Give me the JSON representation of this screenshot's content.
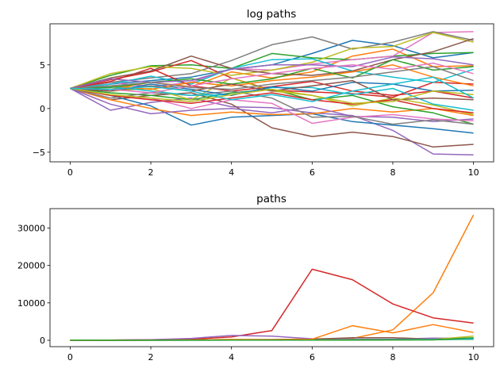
{
  "chart_data": [
    {
      "type": "line",
      "title": "log paths",
      "xlabel": "",
      "ylabel": "",
      "xlim": [
        -0.5,
        10.5
      ],
      "ylim": [
        -6.1,
        9.7
      ],
      "grid": false,
      "x": [
        0,
        1,
        2,
        3,
        4,
        5,
        6,
        7,
        8,
        9,
        10
      ],
      "xticks": [
        0,
        2,
        4,
        6,
        8,
        10
      ],
      "xtick_labels": [
        "0",
        "2",
        "4",
        "6",
        "8",
        "10"
      ],
      "yticks": [
        -5,
        0,
        5
      ],
      "ytick_labels": [
        "−5",
        "0",
        "5"
      ],
      "series": [
        {
          "color": "#1f77b4",
          "values": [
            2.3,
            2.8,
            3.2,
            3.6,
            4.5,
            5.0,
            6.3,
            7.8,
            7.2,
            5.8,
            6.4
          ]
        },
        {
          "color": "#ff7f0e",
          "values": [
            2.3,
            2.2,
            3.0,
            2.5,
            4.2,
            3.5,
            4.2,
            6.0,
            6.8,
            4.8,
            4.9
          ]
        },
        {
          "color": "#2ca02c",
          "values": [
            2.3,
            3.8,
            4.9,
            5.0,
            4.6,
            6.3,
            5.8,
            5.6,
            6.0,
            6.3,
            6.4
          ]
        },
        {
          "color": "#d62728",
          "values": [
            2.3,
            3.3,
            4.2,
            5.5,
            3.5,
            2.1,
            1.9,
            1.7,
            1.3,
            3.0,
            2.8
          ]
        },
        {
          "color": "#9467bd",
          "values": [
            2.3,
            -0.2,
            0.7,
            1.2,
            0.2,
            0.1,
            -0.5,
            -0.8,
            -2.5,
            -5.2,
            -5.3
          ]
        },
        {
          "color": "#8c564b",
          "values": [
            2.3,
            1.0,
            1.5,
            1.8,
            0.5,
            -2.2,
            -3.2,
            -2.7,
            -3.2,
            -4.4,
            -4.1
          ]
        },
        {
          "color": "#e377c2",
          "values": [
            2.3,
            3.0,
            2.5,
            3.0,
            4.6,
            4.4,
            5.1,
            5.6,
            6.0,
            8.7,
            8.8
          ]
        },
        {
          "color": "#7f7f7f",
          "values": [
            2.3,
            3.0,
            3.5,
            4.0,
            5.5,
            7.3,
            8.2,
            6.8,
            7.6,
            8.8,
            7.8
          ]
        },
        {
          "color": "#bcbd22",
          "values": [
            2.3,
            4.0,
            4.8,
            4.6,
            3.8,
            4.4,
            5.3,
            6.9,
            7.1,
            8.7,
            7.6
          ]
        },
        {
          "color": "#17becf",
          "values": [
            2.3,
            2.8,
            3.7,
            2.8,
            4.6,
            5.6,
            5.7,
            4.3,
            3.6,
            3.0,
            4.5
          ]
        },
        {
          "color": "#1f77b4",
          "values": [
            2.3,
            1.5,
            0.3,
            -1.9,
            -1.0,
            -0.8,
            -0.6,
            -1.5,
            -1.9,
            -2.3,
            -2.8
          ]
        },
        {
          "color": "#ff7f0e",
          "values": [
            2.3,
            1.0,
            0.0,
            -0.8,
            -0.4,
            -0.7,
            -0.6,
            0.0,
            -0.4,
            0.0,
            -0.8
          ]
        },
        {
          "color": "#2ca02c",
          "values": [
            2.3,
            1.8,
            1.5,
            1.0,
            1.8,
            2.2,
            1.0,
            1.5,
            0.2,
            -0.5,
            -1.8
          ]
        },
        {
          "color": "#d62728",
          "values": [
            2.3,
            3.1,
            4.6,
            2.6,
            2.0,
            2.5,
            3.1,
            2.0,
            1.5,
            2.0,
            1.2
          ]
        },
        {
          "color": "#9467bd",
          "values": [
            2.3,
            0.5,
            -0.6,
            -0.2,
            0.0,
            -0.5,
            0.2,
            -0.9,
            -1.0,
            -1.5,
            -1.2
          ]
        },
        {
          "color": "#8c564b",
          "values": [
            2.3,
            3.5,
            4.3,
            6.0,
            4.6,
            4.0,
            3.8,
            4.3,
            5.6,
            6.5,
            8.0
          ]
        },
        {
          "color": "#e377c2",
          "values": [
            2.3,
            1.5,
            1.2,
            0.0,
            1.0,
            0.6,
            -1.7,
            -1.0,
            -0.7,
            -1.2,
            -1.4
          ]
        },
        {
          "color": "#7f7f7f",
          "values": [
            2.3,
            1.2,
            1.8,
            1.5,
            2.0,
            1.2,
            -1.0,
            -0.9,
            -1.8,
            -1.3,
            -1.8
          ]
        },
        {
          "color": "#bcbd22",
          "values": [
            2.3,
            2.0,
            2.3,
            1.0,
            3.5,
            2.0,
            1.5,
            0.3,
            1.2,
            0.4,
            -0.7
          ]
        },
        {
          "color": "#17becf",
          "values": [
            2.3,
            2.5,
            2.0,
            1.5,
            1.6,
            2.4,
            2.4,
            1.6,
            2.3,
            0.5,
            -0.2
          ]
        },
        {
          "color": "#1f77b4",
          "values": [
            2.3,
            2.0,
            2.8,
            2.2,
            1.5,
            2.5,
            2.0,
            3.0,
            2.8,
            2.0,
            2.1
          ]
        },
        {
          "color": "#ff7f0e",
          "values": [
            2.3,
            2.6,
            2.2,
            3.0,
            2.6,
            3.2,
            3.6,
            4.2,
            5.0,
            3.6,
            2.6
          ]
        },
        {
          "color": "#2ca02c",
          "values": [
            2.3,
            2.4,
            3.0,
            3.4,
            2.8,
            3.4,
            4.6,
            3.5,
            5.6,
            4.4,
            4.8
          ]
        },
        {
          "color": "#d62728",
          "values": [
            2.3,
            1.5,
            1.0,
            0.6,
            1.2,
            1.8,
            1.0,
            0.5,
            1.0,
            0.0,
            -0.5
          ]
        },
        {
          "color": "#9467bd",
          "values": [
            2.3,
            3.4,
            3.0,
            3.2,
            4.5,
            5.0,
            5.0,
            4.8,
            5.9,
            5.7,
            5.0
          ]
        },
        {
          "color": "#8c564b",
          "values": [
            2.3,
            2.0,
            2.6,
            2.0,
            2.8,
            2.0,
            2.6,
            3.2,
            1.0,
            1.2,
            1.0
          ]
        },
        {
          "color": "#e377c2",
          "values": [
            2.3,
            2.2,
            1.8,
            2.6,
            3.4,
            4.0,
            4.6,
            5.0,
            4.5,
            5.2,
            4.0
          ]
        },
        {
          "color": "#7f7f7f",
          "values": [
            2.3,
            2.6,
            3.0,
            2.4,
            2.2,
            2.8,
            3.2,
            3.6,
            4.2,
            4.8,
            3.2
          ]
        },
        {
          "color": "#bcbd22",
          "values": [
            2.3,
            1.6,
            1.2,
            0.8,
            1.6,
            2.2,
            1.5,
            0.6,
            0.8,
            2.0,
            1.6
          ]
        },
        {
          "color": "#17becf",
          "values": [
            2.3,
            2.2,
            2.5,
            2.0,
            1.0,
            1.6,
            0.8,
            2.0,
            2.8,
            3.6,
            1.2
          ]
        }
      ]
    },
    {
      "type": "line",
      "title": "paths",
      "xlabel": "",
      "ylabel": "",
      "xlim": [
        -0.5,
        10.5
      ],
      "ylim": [
        -1700,
        35200
      ],
      "grid": false,
      "x": [
        0,
        1,
        2,
        3,
        4,
        5,
        6,
        7,
        8,
        9,
        10
      ],
      "xticks": [
        0,
        2,
        4,
        6,
        8,
        10
      ],
      "xtick_labels": [
        "0",
        "2",
        "4",
        "6",
        "8",
        "10"
      ],
      "yticks": [
        0,
        10000,
        20000,
        30000
      ],
      "ytick_labels": [
        "0",
        "10000",
        "20000",
        "30000"
      ],
      "series": [
        {
          "color": "#1f77b4",
          "values": [
            10,
            15,
            20,
            30,
            40,
            60,
            80,
            100,
            150,
            200,
            300
          ]
        },
        {
          "color": "#ff7f0e",
          "values": [
            10,
            20,
            50,
            100,
            200,
            150,
            400,
            500,
            2800,
            12700,
            33500
          ]
        },
        {
          "color": "#2ca02c",
          "values": [
            10,
            20,
            30,
            40,
            60,
            80,
            100,
            120,
            150,
            180,
            250
          ]
        },
        {
          "color": "#d62728",
          "values": [
            10,
            30,
            150,
            300,
            900,
            2600,
            19000,
            16200,
            9700,
            6000,
            4600
          ]
        },
        {
          "color": "#9467bd",
          "values": [
            10,
            50,
            150,
            500,
            1300,
            1100,
            400,
            300,
            300,
            600,
            500
          ]
        },
        {
          "color": "#8c564b",
          "values": [
            10,
            20,
            40,
            80,
            150,
            200,
            300,
            700,
            700,
            300,
            400
          ]
        },
        {
          "color": "#e377c2",
          "values": [
            10,
            15,
            20,
            40,
            60,
            80,
            100,
            150,
            200,
            300,
            600
          ]
        },
        {
          "color": "#7f7f7f",
          "values": [
            10,
            15,
            30,
            50,
            80,
            100,
            150,
            200,
            250,
            300,
            350
          ]
        },
        {
          "color": "#bcbd22",
          "values": [
            10,
            10,
            20,
            30,
            50,
            50,
            80,
            100,
            150,
            200,
            1100
          ]
        },
        {
          "color": "#17becf",
          "values": [
            10,
            10,
            10,
            20,
            30,
            40,
            50,
            100,
            150,
            200,
            400
          ]
        },
        {
          "color": "#ff7f0e",
          "values": [
            10,
            20,
            60,
            100,
            200,
            150,
            300,
            3900,
            2000,
            4200,
            2100
          ]
        },
        {
          "color": "#2ca02c",
          "values": [
            10,
            15,
            20,
            25,
            30,
            40,
            50,
            60,
            80,
            100,
            700
          ]
        }
      ]
    }
  ]
}
